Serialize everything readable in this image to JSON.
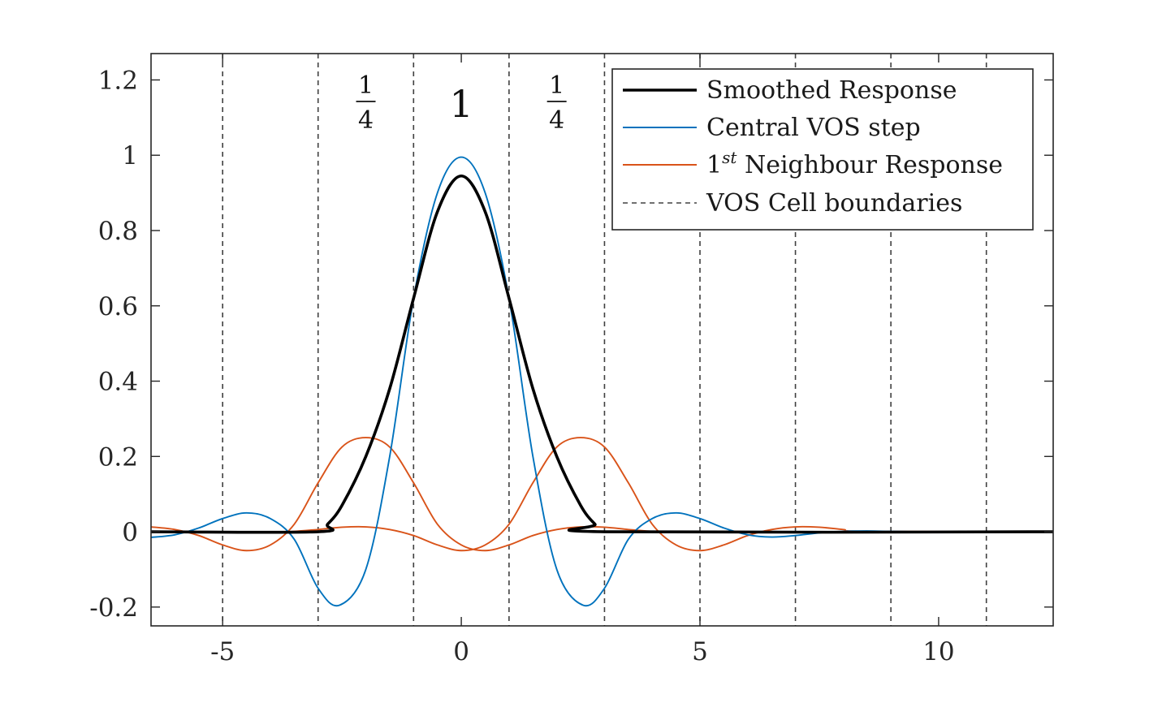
{
  "chart_data": {
    "type": "line",
    "xlim": [
      -6.5,
      12.4
    ],
    "ylim": [
      -0.25,
      1.27
    ],
    "xticks": [
      -5,
      0,
      5,
      10
    ],
    "xtick_labels": [
      "-5",
      "0",
      "5",
      "10"
    ],
    "yticks": [
      -0.2,
      0,
      0.2,
      0.4,
      0.6,
      0.8,
      1.0,
      1.2
    ],
    "ytick_labels": [
      "-0.2",
      "0",
      "0.2",
      "0.4",
      "0.6",
      "0.8",
      "1",
      "1.2"
    ],
    "cell_boundaries": [
      -5,
      -3,
      -1,
      1,
      3,
      5,
      7,
      9,
      11
    ],
    "grid": false,
    "legend_position": "top-right",
    "legend": [
      {
        "prefix": "Smoothed Response",
        "sup": "",
        "suffix": ""
      },
      {
        "prefix": "Central VOS step",
        "sup": "",
        "suffix": ""
      },
      {
        "prefix": "1",
        "sup": "st",
        "suffix": " Neighbour Response"
      },
      {
        "prefix": "VOS Cell boundaries",
        "sup": "",
        "suffix": ""
      }
    ],
    "annotations": [
      {
        "x": -2,
        "kind": "fraction",
        "numerator": "1",
        "denominator": "4"
      },
      {
        "x": 0,
        "kind": "text",
        "text": "1"
      },
      {
        "x": 2,
        "kind": "fraction",
        "numerator": "1",
        "denominator": "4"
      }
    ],
    "colors": {
      "smoothed": "#000000",
      "central": "#0072BD",
      "neighbour": "#D95319",
      "boundary": "#404040",
      "axes": "#262626"
    },
    "series": [
      {
        "key": "smoothed",
        "x": [
          -6.5,
          -3.0,
          -2.8,
          -2.5,
          -2.0,
          -1.5,
          -1.0,
          -0.5,
          0,
          0.5,
          1.0,
          1.5,
          2.0,
          2.5,
          2.8,
          3.0,
          12.4
        ],
        "y": [
          0,
          0,
          0.02,
          0.07,
          0.2,
          0.38,
          0.62,
          0.85,
          0.945,
          0.85,
          0.62,
          0.38,
          0.2,
          0.07,
          0.02,
          0,
          0
        ]
      },
      {
        "key": "central",
        "x": [
          -6.5,
          -6.0,
          -5.5,
          -5.0,
          -4.5,
          -4.0,
          -3.5,
          -3.0,
          -2.55,
          -2.0,
          -1.5,
          -1.0,
          -0.5,
          0,
          0.5,
          1.0,
          1.5,
          2.0,
          2.55,
          3.0,
          3.5,
          4.0,
          4.5,
          5.0,
          5.5,
          6.0,
          6.5,
          7.0,
          7.5,
          8.0,
          8.5,
          9.0,
          9.5,
          10.0,
          12.4
        ],
        "y": [
          -0.015,
          -0.008,
          0.01,
          0.035,
          0.05,
          0.035,
          -0.02,
          -0.15,
          -0.195,
          -0.1,
          0.2,
          0.62,
          0.9,
          0.995,
          0.9,
          0.62,
          0.2,
          -0.1,
          -0.195,
          -0.15,
          -0.02,
          0.035,
          0.05,
          0.035,
          0.01,
          -0.008,
          -0.014,
          -0.01,
          -0.003,
          0.001,
          0.002,
          0.001,
          0,
          0,
          0
        ]
      },
      {
        "key": "neighbour_left",
        "x": [
          -6.5,
          -6.0,
          -5.5,
          -5.0,
          -4.5,
          -4.0,
          -3.5,
          -3.0,
          -2.5,
          -2.0,
          -1.5,
          -1.0,
          -0.5,
          0,
          0.5,
          1.0,
          1.5,
          2.0,
          2.5,
          3.0,
          3.5,
          4.0,
          4.5,
          5.0,
          5.5,
          6.0,
          6.5,
          7.0,
          7.5,
          8.0,
          12.4
        ],
        "y": [
          0.013,
          0.006,
          -0.01,
          -0.035,
          -0.05,
          -0.035,
          0.02,
          0.13,
          0.225,
          0.25,
          0.225,
          0.13,
          0.02,
          -0.035,
          -0.05,
          -0.035,
          -0.01,
          0.006,
          0.013,
          0.012,
          0.006,
          0.001,
          0,
          0,
          0,
          0,
          0,
          0,
          0,
          0,
          0
        ]
      },
      {
        "key": "neighbour_right",
        "x": [
          -6.5,
          -4.0,
          -3.5,
          -3.0,
          -2.5,
          -2.0,
          -1.5,
          -1.0,
          -0.5,
          0,
          0.5,
          1.0,
          1.5,
          2.0,
          2.5,
          3.0,
          3.5,
          4.0,
          4.5,
          5.0,
          5.5,
          6.0,
          6.5,
          7.0,
          7.5,
          8.0,
          8.5,
          12.4
        ],
        "y": [
          0,
          0,
          0.001,
          0.006,
          0.012,
          0.013,
          0.006,
          -0.01,
          -0.035,
          -0.05,
          -0.035,
          0.02,
          0.13,
          0.225,
          0.25,
          0.225,
          0.13,
          0.02,
          -0.035,
          -0.05,
          -0.035,
          -0.01,
          0.006,
          0.013,
          0.012,
          0.006,
          0.001,
          0
        ]
      }
    ]
  }
}
